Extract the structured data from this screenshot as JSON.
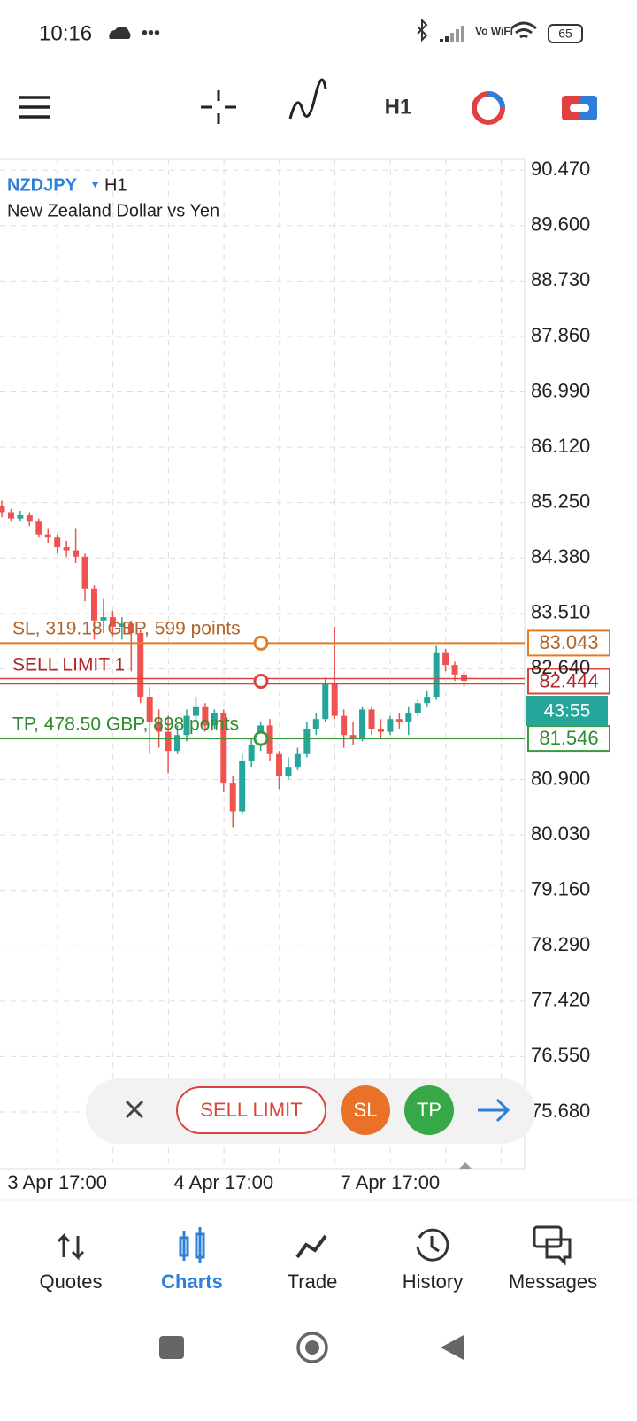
{
  "status_bar": {
    "time": "10:16",
    "network": "Vo WiFi",
    "battery": "65"
  },
  "toolbar": {
    "timeframe": "H1"
  },
  "chart_data": {
    "type": "candlestick",
    "symbol": "NZDJPY",
    "timeframe": "H1",
    "description": "New Zealand Dollar vs Yen",
    "categories": [
      null,
      null,
      null,
      null,
      null,
      null,
      "3 Apr 17:00",
      null,
      null,
      null,
      null,
      null,
      null,
      null,
      null,
      null,
      null,
      null,
      null,
      null,
      null,
      null,
      null,
      null,
      "4 Apr 17:00",
      null,
      null,
      null,
      null,
      null,
      null,
      null,
      null,
      null,
      null,
      null,
      null,
      null,
      null,
      null,
      null,
      null,
      "7 Apr 17:00",
      null,
      null,
      null,
      null,
      null,
      null,
      null,
      null
    ],
    "open": [
      85.2,
      85.1,
      85.0,
      85.05,
      84.95,
      84.75,
      84.7,
      84.55,
      84.5,
      84.4,
      83.9,
      83.4,
      83.45,
      83.3,
      83.35,
      83.2,
      82.2,
      81.8,
      81.65,
      81.35,
      81.6,
      81.9,
      82.05,
      81.75,
      81.95,
      80.85,
      80.4,
      81.2,
      81.45,
      81.75,
      81.3,
      80.95,
      81.1,
      81.3,
      81.7,
      81.85,
      82.4,
      81.9,
      81.6,
      81.55,
      82.0,
      81.7,
      81.65,
      81.85,
      81.8,
      81.95,
      82.1,
      82.2,
      82.9,
      82.7,
      82.55
    ],
    "high": [
      85.28,
      85.15,
      85.12,
      85.1,
      85.0,
      84.85,
      84.75,
      84.65,
      84.85,
      84.45,
      83.95,
      83.75,
      83.55,
      83.45,
      83.4,
      83.25,
      82.35,
      82.0,
      81.9,
      81.75,
      82.0,
      82.2,
      82.1,
      82.0,
      82.0,
      80.95,
      81.3,
      81.55,
      81.8,
      81.85,
      81.35,
      81.25,
      81.4,
      81.8,
      81.95,
      82.5,
      83.3,
      82.0,
      81.8,
      82.05,
      82.05,
      81.85,
      81.9,
      81.95,
      82.05,
      82.15,
      82.3,
      83.0,
      82.95,
      82.75,
      82.6
    ],
    "low": [
      85.02,
      84.95,
      84.95,
      84.88,
      84.7,
      84.62,
      84.45,
      84.4,
      84.3,
      83.7,
      83.1,
      83.2,
      83.15,
      83.1,
      82.6,
      82.1,
      81.3,
      81.4,
      81.0,
      81.3,
      81.5,
      81.8,
      81.65,
      81.7,
      80.7,
      80.15,
      80.35,
      81.1,
      81.35,
      81.2,
      80.75,
      80.9,
      81.05,
      81.25,
      81.6,
      81.8,
      81.85,
      81.4,
      81.45,
      81.5,
      81.6,
      81.55,
      81.6,
      81.7,
      81.6,
      81.9,
      82.05,
      82.15,
      82.6,
      82.45,
      82.35
    ],
    "close": [
      85.1,
      85.0,
      85.05,
      84.95,
      84.75,
      84.7,
      84.55,
      84.5,
      84.4,
      83.9,
      83.4,
      83.45,
      83.3,
      83.35,
      83.2,
      82.2,
      81.8,
      81.65,
      81.35,
      81.6,
      81.9,
      82.05,
      81.75,
      81.95,
      80.85,
      80.4,
      81.2,
      81.45,
      81.75,
      81.3,
      80.95,
      81.1,
      81.3,
      81.7,
      81.85,
      82.4,
      81.9,
      81.6,
      81.55,
      82.0,
      81.7,
      81.65,
      81.85,
      81.8,
      81.95,
      82.1,
      82.2,
      82.9,
      82.7,
      82.55,
      82.45
    ],
    "up_color": "#26a69a",
    "down_color": "#ef5350",
    "ylim": [
      74.79,
      90.64
    ],
    "yticks": [
      {
        "value": 90.47,
        "label": "90.470"
      },
      {
        "value": 89.6,
        "label": "89.600"
      },
      {
        "value": 88.73,
        "label": "88.730"
      },
      {
        "value": 87.86,
        "label": "87.860"
      },
      {
        "value": 86.99,
        "label": "86.990"
      },
      {
        "value": 86.12,
        "label": "86.120"
      },
      {
        "value": 85.25,
        "label": "85.250"
      },
      {
        "value": 84.38,
        "label": "84.380"
      },
      {
        "value": 83.51,
        "label": "83.510"
      },
      {
        "value": 82.64,
        "label": "82.640"
      },
      {
        "value": 80.9,
        "label": "80.900"
      },
      {
        "value": 80.03,
        "label": "80.030"
      },
      {
        "value": 79.16,
        "label": "79.160"
      },
      {
        "value": 78.29,
        "label": "78.290"
      },
      {
        "value": 77.42,
        "label": "77.420"
      },
      {
        "value": 76.55,
        "label": "76.550"
      },
      {
        "value": 75.68,
        "label": "75.680"
      }
    ],
    "grid": true,
    "levels": [
      {
        "label": "SL, 319.18 GBP, 599 points",
        "price": 83.043,
        "color": "#e07b28",
        "text_color": "#b0652a"
      },
      {
        "label": "SELL LIMIT 1",
        "price": 82.444,
        "color": "#d9453e",
        "text_color": "#b3262a"
      },
      {
        "label": "TP, 478.50 GBP, 898 points",
        "price": 81.546,
        "color": "#3e9a3e",
        "text_color": "#2e8b2e"
      }
    ],
    "countdown": "43:55"
  },
  "order_bar": {
    "type": "SELL LIMIT",
    "sl": "SL",
    "tp": "TP"
  },
  "nav": [
    "Quotes",
    "Charts",
    "Trade",
    "History",
    "Messages"
  ]
}
